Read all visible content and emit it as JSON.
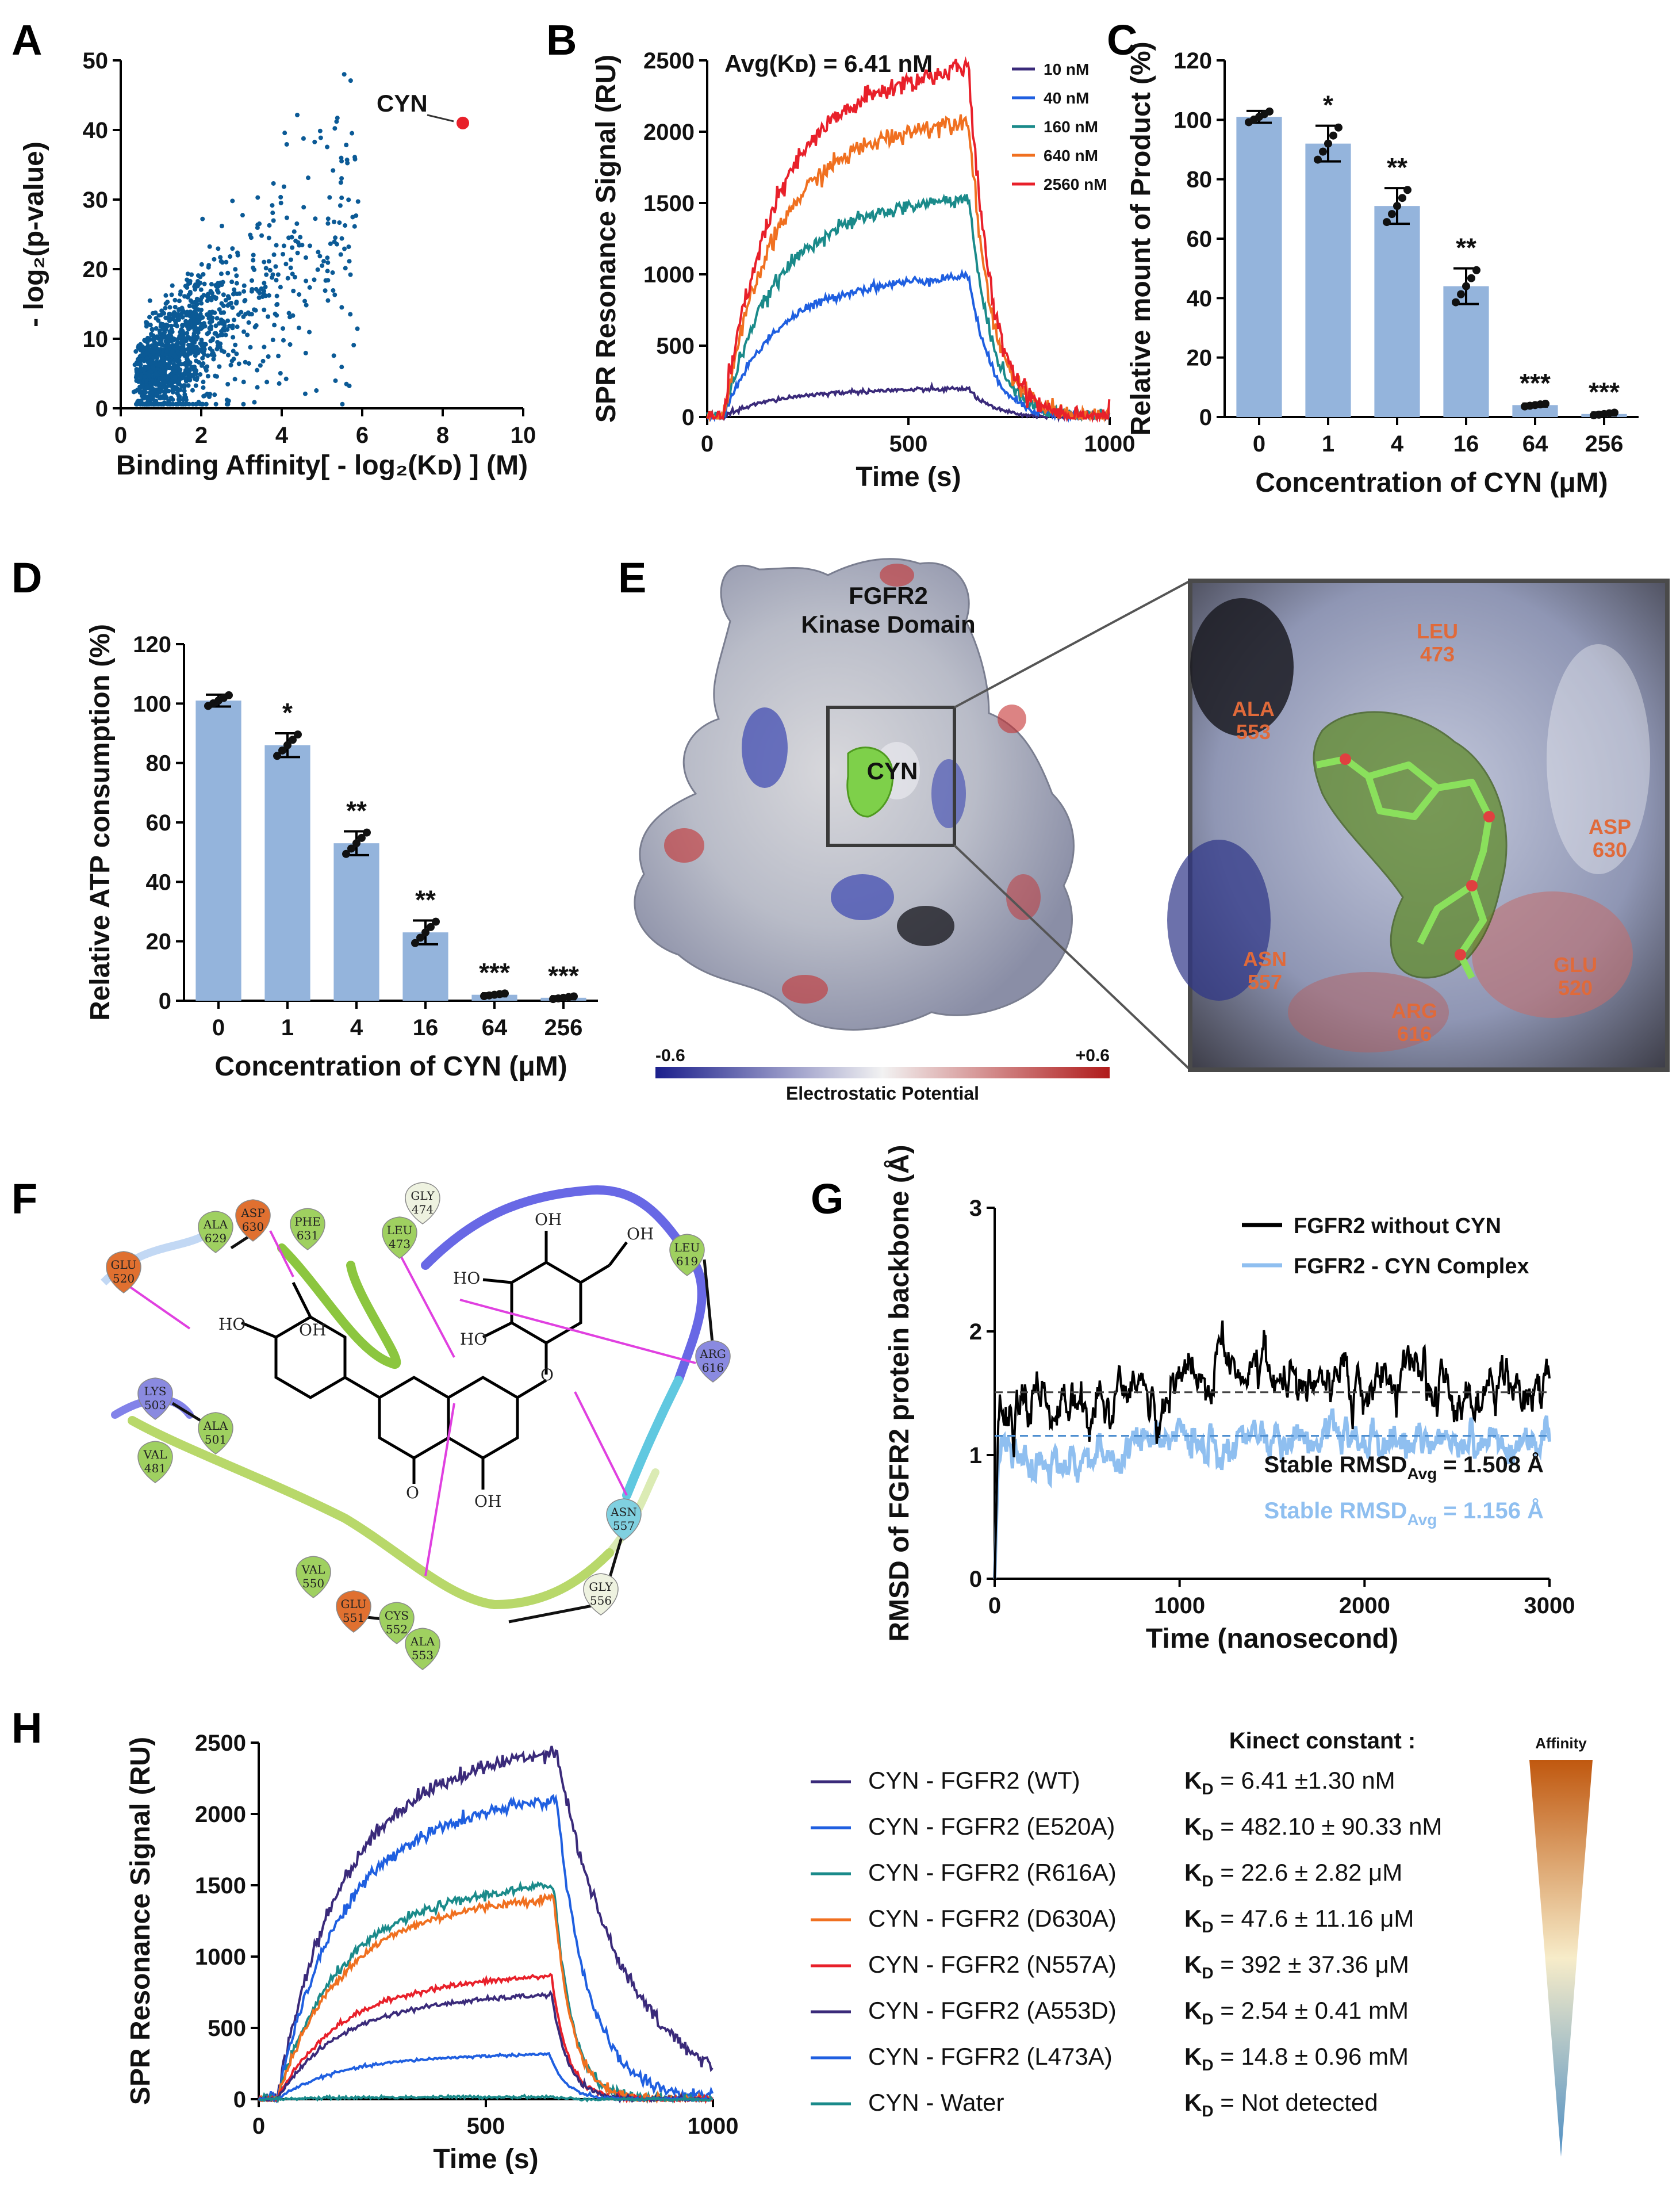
{
  "panels": {
    "A": "A",
    "B": "B",
    "C": "C",
    "D": "D",
    "E": "E",
    "F": "F",
    "G": "G",
    "H": "H"
  },
  "chart_data": [
    {
      "id": "A",
      "type": "scatter",
      "xlabel": "Binding Affinity[ - log₂(Kᴅ) ] (M)",
      "ylabel": "- log₂(p-value)",
      "xlim": [
        0,
        10
      ],
      "ylim": [
        0,
        50
      ],
      "xticks": [
        "0",
        "2",
        "4",
        "6",
        "8",
        "10"
      ],
      "yticks": [
        "0",
        "10",
        "20",
        "30",
        "40",
        "50"
      ],
      "highlight": {
        "label": "CYN",
        "x": 8.5,
        "y": 41
      },
      "point_color": "#0b5a96",
      "highlight_color": "#e8202a",
      "n_points": 1400
    },
    {
      "id": "B",
      "type": "line",
      "title": "Avg(Kᴅ) = 6.41 nM",
      "xlabel": "Time (s)",
      "ylabel": "SPR Resonance Signal (RU)",
      "xlim": [
        0,
        1000
      ],
      "ylim": [
        0,
        2500
      ],
      "xticks": [
        "0",
        "500",
        "1000"
      ],
      "yticks": [
        "0",
        "500",
        "1000",
        "1500",
        "2000",
        "2500"
      ],
      "series": [
        {
          "name": "10 nM",
          "plateau": 180,
          "color": "#3a2a7a"
        },
        {
          "name": "40 nM",
          "plateau": 900,
          "color": "#1f5fe0"
        },
        {
          "name": "160 nM",
          "plateau": 1400,
          "color": "#1a8a8a"
        },
        {
          "name": "640 nM",
          "plateau": 1900,
          "color": "#f07020"
        },
        {
          "name": "2560 nM",
          "plateau": 2230,
          "color": "#e8202a"
        }
      ]
    },
    {
      "id": "C",
      "type": "bar",
      "xlabel": "Concentration of CYN (μM)",
      "ylabel": "Relative mount of Product (%)",
      "ylim": [
        0,
        120
      ],
      "yticks": [
        "0",
        "20",
        "40",
        "60",
        "80",
        "100",
        "120"
      ],
      "categories": [
        "0",
        "1",
        "4",
        "16",
        "64",
        "256"
      ],
      "values": [
        101,
        92,
        71,
        44,
        4,
        1
      ],
      "errors": [
        2,
        6,
        6,
        6,
        0.5,
        0.5
      ],
      "significance": [
        "",
        "*",
        "**",
        "**",
        "***",
        "***"
      ],
      "color": "#94b4dc"
    },
    {
      "id": "D",
      "type": "bar",
      "xlabel": "Concentration of CYN (μM)",
      "ylabel": "Relative ATP consumption (%)",
      "ylim": [
        0,
        120
      ],
      "yticks": [
        "0",
        "20",
        "40",
        "60",
        "80",
        "100",
        "120"
      ],
      "categories": [
        "0",
        "1",
        "4",
        "16",
        "64",
        "256"
      ],
      "values": [
        101,
        86,
        53,
        23,
        2,
        1
      ],
      "errors": [
        2,
        4,
        4,
        4,
        0.5,
        0.5
      ],
      "significance": [
        "",
        "*",
        "**",
        "**",
        "***",
        "***"
      ],
      "color": "#94b4dc"
    },
    {
      "id": "G",
      "type": "line",
      "xlabel": "Time (nanosecond)",
      "ylabel": "RMSD of FGFR2 protein backbone (Å)",
      "xlim": [
        0,
        3000
      ],
      "ylim": [
        0,
        3
      ],
      "xticks": [
        "0",
        "1000",
        "2000",
        "3000"
      ],
      "yticks": [
        "0",
        "1",
        "2",
        "3"
      ],
      "series": [
        {
          "name": "FGFR2 without CYN",
          "mean": 1.508,
          "color": "#000000"
        },
        {
          "name": "FGFR2 - CYN Complex",
          "mean": 1.156,
          "color": "#8fbff0"
        }
      ],
      "annotations": [
        "Stable RMSD",
        "Avg",
        " = 1.508 Å",
        " = 1.156 Å"
      ]
    },
    {
      "id": "H",
      "type": "line",
      "xlabel": "Time (s)",
      "ylabel": "SPR Resonance Signal (RU)",
      "xlim": [
        0,
        1000
      ],
      "ylim": [
        0,
        2500
      ],
      "xticks": [
        "0",
        "500",
        "1000"
      ],
      "yticks": [
        "0",
        "500",
        "1000",
        "1500",
        "2000",
        "2500"
      ],
      "series": [
        {
          "name": "CYN - FGFR2 (WT)",
          "plateau": 2230,
          "kd": "= 6.41 ±1.30 nM",
          "color": "#3a2a7a"
        },
        {
          "name": "CYN - FGFR2 (E520A)",
          "plateau": 1920,
          "kd": "= 482.10 ± 90.33 nM",
          "color": "#1f5fe0"
        },
        {
          "name": "CYN - FGFR2 (R616A)",
          "plateau": 1370,
          "kd": "= 22.6 ± 2.82 μM",
          "color": "#1a8a8a"
        },
        {
          "name": "CYN - FGFR2 (D630A)",
          "plateau": 1290,
          "kd": "= 47.6 ± 11.16 μM",
          "color": "#f07020"
        },
        {
          "name": "CYN - FGFR2 (N557A)",
          "plateau": 790,
          "kd": "= 392 ± 37.36 μM",
          "color": "#e8202a"
        },
        {
          "name": "CYN - FGFR2 (A553D)",
          "plateau": 670,
          "kd": "= 2.54 ± 0.41 mM",
          "color": "#3a2a7a"
        },
        {
          "name": "CYN - FGFR2 (L473A)",
          "plateau": 290,
          "kd": "= 14.8 ± 0.96 mM",
          "color": "#1f5fe0"
        },
        {
          "name": "CYN - Water",
          "plateau": 15,
          "kd": "= Not detected",
          "color": "#1a8a8a"
        }
      ],
      "kinetic_title": "Kinect constant :",
      "kd_symbol": "K",
      "kd_sub": "D",
      "affinity_label": "Affinity"
    }
  ],
  "panelE": {
    "protein_title_1": "FGFR2",
    "protein_title_2": "Kinase Domain",
    "ligand": "CYN",
    "scale_min": "-0.6",
    "scale_max": "+0.6",
    "scale_title": "Electrostatic Potential",
    "residues": [
      {
        "name": "LEU",
        "num": "473"
      },
      {
        "name": "ALA",
        "num": "553"
      },
      {
        "name": "ASP",
        "num": "630"
      },
      {
        "name": "ASN",
        "num": "557"
      },
      {
        "name": "GLU",
        "num": "520"
      },
      {
        "name": "ARG",
        "num": "616"
      }
    ]
  },
  "panelF": {
    "residues": [
      {
        "name": "GLU",
        "num": "520",
        "color": "#e07030"
      },
      {
        "name": "ALA",
        "num": "629",
        "color": "#9fd060"
      },
      {
        "name": "ASP",
        "num": "630",
        "color": "#e07030"
      },
      {
        "name": "PHE",
        "num": "631",
        "color": "#9fd060"
      },
      {
        "name": "LEU",
        "num": "473",
        "color": "#9fd060"
      },
      {
        "name": "GLY",
        "num": "474",
        "color": "#eef2e0"
      },
      {
        "name": "LEU",
        "num": "619",
        "color": "#9fd060"
      },
      {
        "name": "ARG",
        "num": "616",
        "color": "#8a8ae0"
      },
      {
        "name": "LYS",
        "num": "503",
        "color": "#8a8ae0"
      },
      {
        "name": "ALA",
        "num": "501",
        "color": "#9fd060"
      },
      {
        "name": "VAL",
        "num": "481",
        "color": "#9fd060"
      },
      {
        "name": "VAL",
        "num": "550",
        "color": "#9fd060"
      },
      {
        "name": "GLU",
        "num": "551",
        "color": "#e07030"
      },
      {
        "name": "CYS",
        "num": "552",
        "color": "#9fd060"
      },
      {
        "name": "ALA",
        "num": "553",
        "color": "#9fd060"
      },
      {
        "name": "ASN",
        "num": "557",
        "color": "#80d0e0"
      },
      {
        "name": "GLY",
        "num": "556",
        "color": "#eef2e0"
      }
    ],
    "atoms": {
      "oh": "OH",
      "ho": "HO",
      "o": "O"
    }
  }
}
